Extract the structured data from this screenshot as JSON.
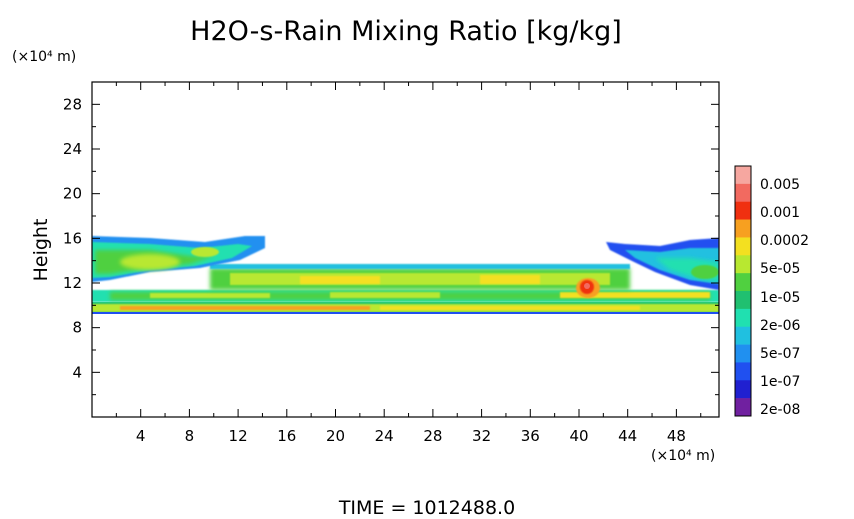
{
  "chart_data": {
    "type": "heatmap",
    "title": "H2O-s-Rain Mixing Ratio [kg/kg]",
    "xlabel": "",
    "ylabel": "Height",
    "x_unit_label": "(×10⁴ m)",
    "y_unit_label": "(×10⁴ m)",
    "xlim": [
      0,
      51.5
    ],
    "ylim": [
      0,
      30
    ],
    "x_ticks": [
      "4",
      "8",
      "12",
      "16",
      "20",
      "24",
      "28",
      "32",
      "36",
      "40",
      "44",
      "48"
    ],
    "y_ticks": [
      "4",
      "8",
      "12",
      "16",
      "20",
      "24",
      "28"
    ],
    "colorbar": {
      "scale": "log",
      "labels": [
        "0.005",
        "0.001",
        "0.0002",
        "5e-05",
        "1e-05",
        "2e-06",
        "5e-07",
        "1e-07",
        "2e-08"
      ],
      "colors": [
        "#f6a7a0",
        "#f26a60",
        "#f03010",
        "#f7a020",
        "#f3e020",
        "#b8e830",
        "#50d040",
        "#20c070",
        "#20e0b0",
        "#20c0e0",
        "#2090f0",
        "#2050f0",
        "#2020d0",
        "#7020a0"
      ]
    },
    "regions": [
      {
        "x": [
          0,
          51.5
        ],
        "y": [
          9.2,
          10.3
        ],
        "level": "5e-05 to 0.0002",
        "desc": "continuous layer"
      },
      {
        "x": [
          0,
          51.5
        ],
        "y": [
          10.3,
          11.4
        ],
        "level": "1e-05 to 5e-05"
      },
      {
        "x": [
          16,
          46
        ],
        "y": [
          11.4,
          13
        ],
        "level": "5e-05 to 0.0002"
      },
      {
        "x": [
          0,
          14
        ],
        "y": [
          12,
          16.3
        ],
        "level": "2e-06 to 5e-05",
        "desc": "left cloud mass"
      },
      {
        "x": [
          41,
          51.5
        ],
        "y": [
          11.5,
          16
        ],
        "level": "1e-07 to 1e-05",
        "desc": "right cloud mass"
      },
      {
        "x": [
          39,
          41
        ],
        "y": [
          10.5,
          12.5
        ],
        "level": "0.001",
        "desc": "local maximum"
      }
    ]
  },
  "footer": {
    "time_text": "TIME = 1012488.0"
  },
  "colors": {
    "frame": "#000000",
    "background": "#ffffff"
  }
}
